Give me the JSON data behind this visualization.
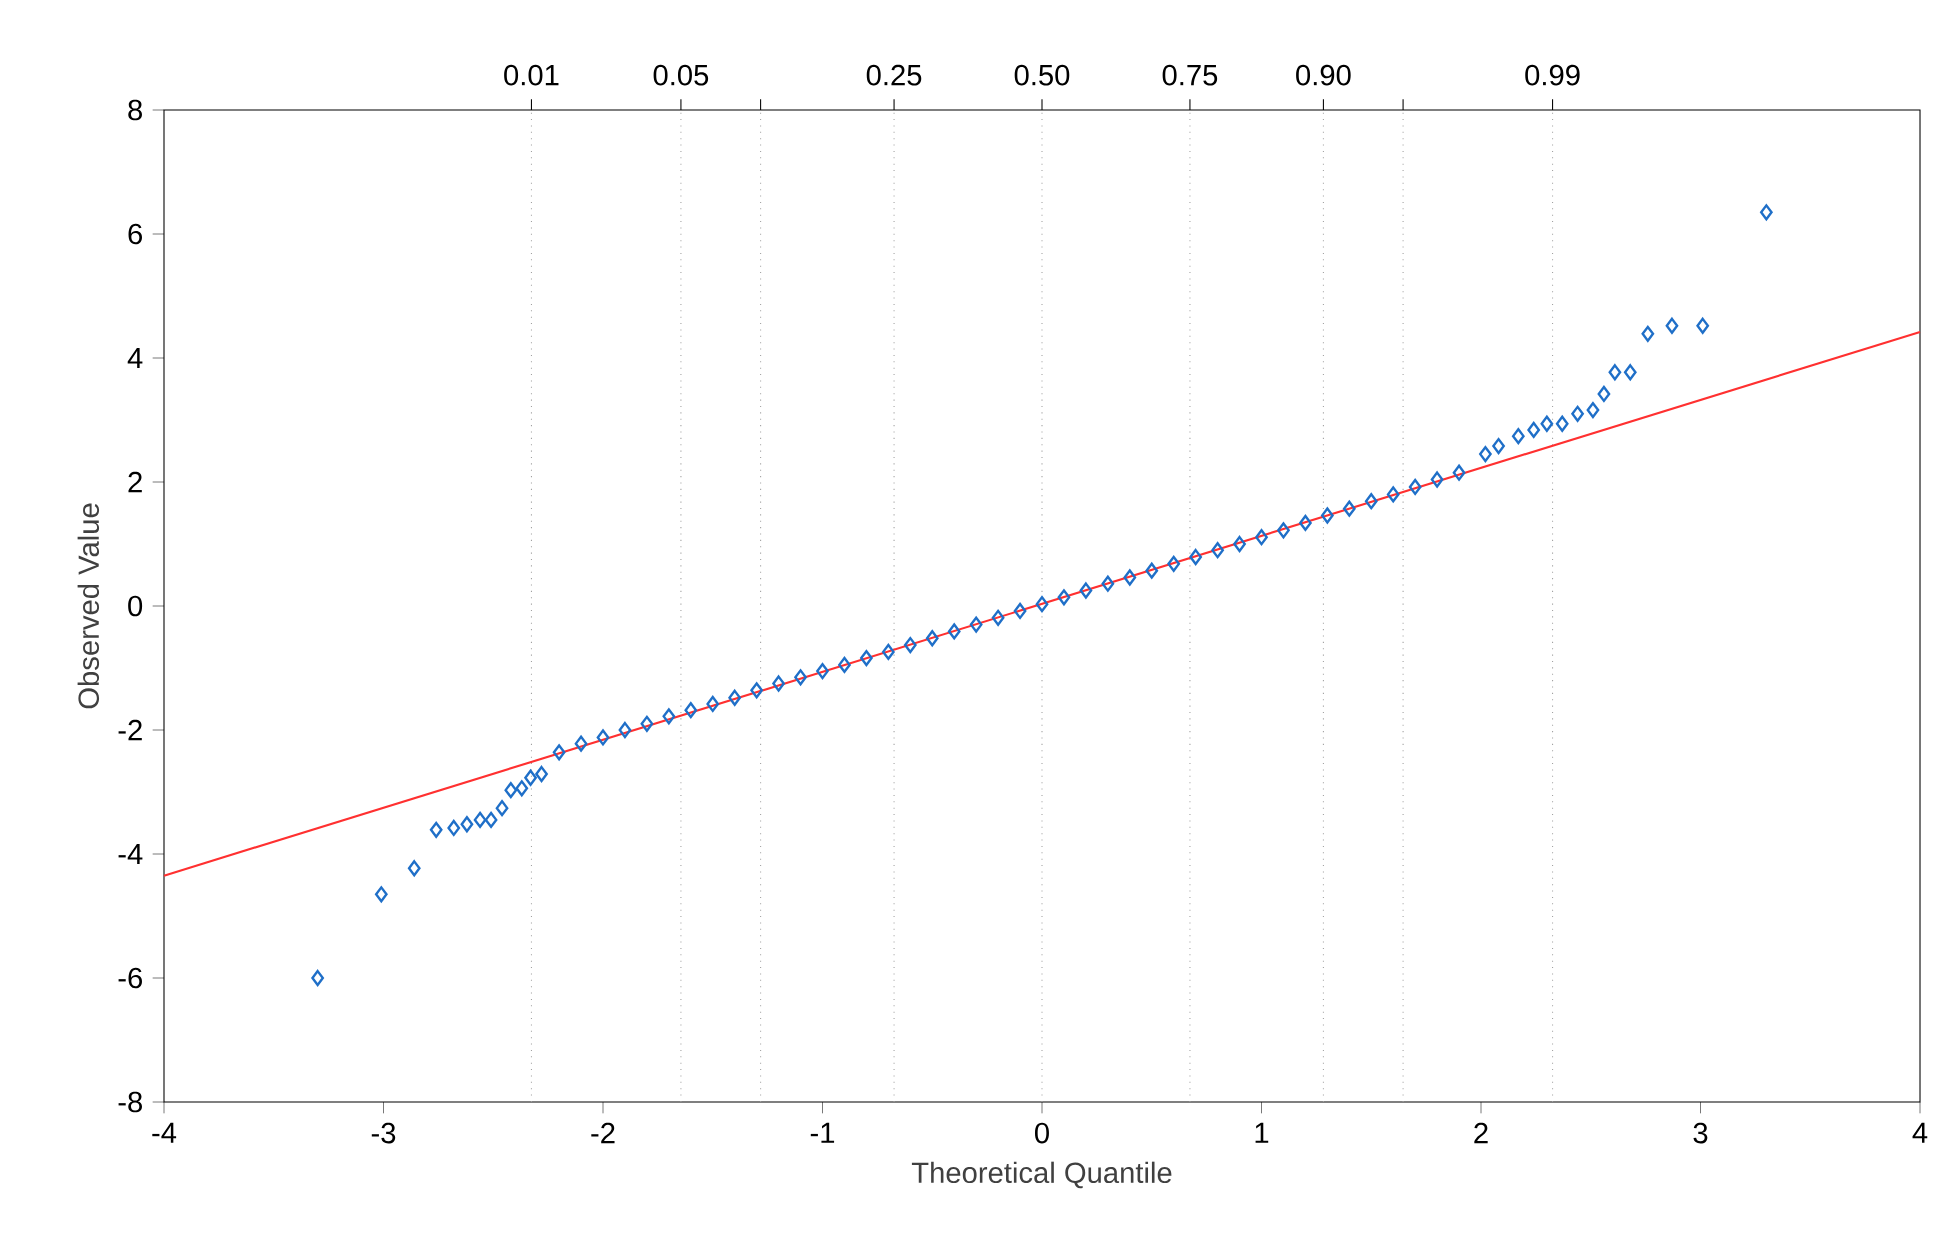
{
  "chart_data": {
    "type": "scatter",
    "xlabel": "Theoretical Quantile",
    "ylabel": "Observed Value",
    "xlim": [
      -4,
      4
    ],
    "ylim": [
      -8,
      8
    ],
    "xticks": [
      -4,
      -3,
      -2,
      -1,
      0,
      1,
      2,
      3,
      4
    ],
    "yticks": [
      -8,
      -6,
      -4,
      -2,
      0,
      2,
      4,
      6,
      8
    ],
    "ref_lines": [
      {
        "axis": "x",
        "value": -2.326,
        "color": "#a0a0a0",
        "line_style": "dotted"
      },
      {
        "axis": "x",
        "value": -1.645,
        "color": "#a0a0a0",
        "line_style": "dotted"
      },
      {
        "axis": "x",
        "value": -1.282,
        "color": "#a0a0a0",
        "line_style": "dotted"
      },
      {
        "axis": "x",
        "value": -0.674,
        "color": "#a0a0a0",
        "line_style": "dotted"
      },
      {
        "axis": "x",
        "value": 0,
        "color": "#a0a0a0",
        "line_style": "dotted"
      },
      {
        "axis": "x",
        "value": 0.674,
        "color": "#a0a0a0",
        "line_style": "dotted"
      },
      {
        "axis": "x",
        "value": 1.282,
        "color": "#a0a0a0",
        "line_style": "dotted"
      },
      {
        "axis": "x",
        "value": 1.645,
        "color": "#a0a0a0",
        "line_style": "dotted"
      },
      {
        "axis": "x",
        "value": 2.326,
        "color": "#a0a0a0",
        "line_style": "dotted"
      }
    ],
    "annotations": [
      {
        "text": "0.01",
        "x": -2.326,
        "y": 8
      },
      {
        "text": "0.05",
        "x": -1.645,
        "y": 8
      },
      {
        "text": "0.25",
        "x": -0.674,
        "y": 8
      },
      {
        "text": "0.50",
        "x": 0,
        "y": 8
      },
      {
        "text": "0.75",
        "x": 0.674,
        "y": 8
      },
      {
        "text": "0.90",
        "x": 1.282,
        "y": 8
      },
      {
        "text": "0.99",
        "x": 2.326,
        "y": 8
      }
    ],
    "series": [
      {
        "type": "scatter",
        "marker": "diamond",
        "color": "#1f6fc8",
        "x": [
          -3.3,
          -3.01,
          -2.86,
          -2.76,
          -2.68,
          -2.62,
          -2.56,
          -2.51,
          -2.46,
          -2.42,
          -2.37,
          -2.33,
          -2.28,
          -2.2,
          -2.1,
          -2.0,
          -1.9,
          -1.8,
          -1.7,
          -1.6,
          -1.5,
          -1.4,
          -1.3,
          -1.2,
          -1.1,
          -1.0,
          -0.9,
          -0.8,
          -0.7,
          -0.6,
          -0.5,
          -0.4,
          -0.3,
          -0.2,
          -0.1,
          0,
          0.1,
          0.2,
          0.3,
          0.4,
          0.5,
          0.6,
          0.7,
          0.8,
          0.9,
          1.0,
          1.1,
          1.2,
          1.3,
          1.4,
          1.5,
          1.6,
          1.7,
          1.8,
          1.9,
          2.02,
          2.08,
          2.17,
          2.24,
          2.3,
          2.37,
          2.44,
          2.51,
          2.56,
          2.61,
          2.68,
          2.76,
          2.87,
          3.01,
          3.3
        ],
        "values": [
          -6.0,
          -4.65,
          -4.23,
          -3.61,
          -3.58,
          -3.52,
          -3.45,
          -3.45,
          -3.26,
          -2.97,
          -2.94,
          -2.77,
          -2.71,
          -2.36,
          -2.22,
          -2.12,
          -2.0,
          -1.9,
          -1.78,
          -1.68,
          -1.58,
          -1.48,
          -1.36,
          -1.25,
          -1.15,
          -1.05,
          -0.95,
          -0.84,
          -0.74,
          -0.63,
          -0.52,
          -0.41,
          -0.3,
          -0.19,
          -0.08,
          0.03,
          0.14,
          0.25,
          0.36,
          0.46,
          0.57,
          0.68,
          0.79,
          0.9,
          1.0,
          1.11,
          1.22,
          1.34,
          1.46,
          1.57,
          1.69,
          1.8,
          1.92,
          2.04,
          2.15,
          2.45,
          2.58,
          2.74,
          2.84,
          2.94,
          2.94,
          3.1,
          3.16,
          3.42,
          3.77,
          3.77,
          4.39,
          4.52,
          4.52,
          6.35
        ]
      },
      {
        "type": "line",
        "marker": "none",
        "line_style": "solid",
        "color": "#ff3030",
        "x": [
          -4,
          4
        ],
        "values": [
          -4.35,
          4.42
        ]
      }
    ]
  }
}
